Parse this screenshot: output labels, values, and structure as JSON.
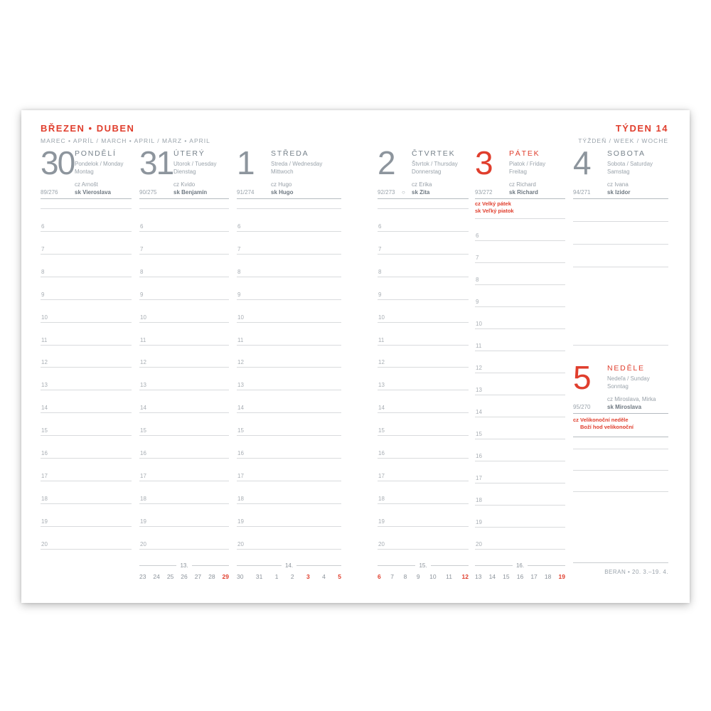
{
  "colors": {
    "accent": "#e03e2d"
  },
  "header": {
    "left_title": "BŘEZEN • DUBEN",
    "left_subtitle": "MAREC • APRÍL / MARCH • APRIL / MÄRZ • APRIL",
    "right_title": "TÝDEN 14",
    "right_subtitle": "TÝŽDEŇ / WEEK / WOCHE"
  },
  "hours": [
    "6",
    "7",
    "8",
    "9",
    "10",
    "11",
    "12",
    "13",
    "14",
    "15",
    "16",
    "17",
    "18",
    "19",
    "20"
  ],
  "days": [
    {
      "num": "30",
      "name": "PONDĚLÍ",
      "sub1": "Pondelok / Monday",
      "sub2": "Montag",
      "cz": "cz Arnošt",
      "sk": "sk Vieroslava",
      "doy": "89/276",
      "moon": ""
    },
    {
      "num": "31",
      "name": "ÚTERÝ",
      "sub1": "Utorok / Tuesday",
      "sub2": "Dienstag",
      "cz": "cz Kvido",
      "sk": "sk Benjamín",
      "doy": "90/275",
      "moon": ""
    },
    {
      "num": "1",
      "name": "STŘEDA",
      "sub1": "Streda / Wednesday",
      "sub2": "Mittwoch",
      "cz": "cz Hugo",
      "sk": "sk Hugo",
      "doy": "91/274",
      "moon": ""
    },
    {
      "num": "2",
      "name": "ČTVRTEK",
      "sub1": "Štvrtok / Thursday",
      "sub2": "Donnerstag",
      "cz": "cz Erika",
      "sk": "sk Zita",
      "doy": "92/273",
      "moon": "○"
    },
    {
      "num": "3",
      "name": "PÁTEK",
      "sub1": "Piatok / Friday",
      "sub2": "Freitag",
      "cz": "cz Richard",
      "sk": "sk Richard",
      "doy": "93/272",
      "moon": "",
      "holiday": [
        "cz Velký pátek",
        "sk Veľký piatok"
      ]
    },
    {
      "num": "4",
      "name": "SOBOTA",
      "sub1": "Sobota / Saturday",
      "sub2": "Samstag",
      "cz": "cz Ivana",
      "sk": "sk Izidor",
      "doy": "94/271",
      "moon": ""
    },
    {
      "num": "5",
      "name": "NEDĚLE",
      "sub1": "Nedeľa / Sunday",
      "sub2": "Sonntag",
      "cz": "cz Miroslava, Mirka",
      "sk": "sk Miroslava",
      "doy": "95/270",
      "moon": "",
      "holiday": [
        "cz Velikonoční neděle",
        "Boží hod velikonoční"
      ]
    }
  ],
  "minicals": [
    {
      "week": "13.",
      "days": [
        {
          "t": "23",
          "red": false
        },
        {
          "t": "24",
          "red": false
        },
        {
          "t": "25",
          "red": false
        },
        {
          "t": "26",
          "red": false
        },
        {
          "t": "27",
          "red": false
        },
        {
          "t": "28",
          "red": false
        },
        {
          "t": "29",
          "red": true
        }
      ]
    },
    {
      "week": "14.",
      "days": [
        {
          "t": "30",
          "red": false
        },
        {
          "t": "31",
          "red": false
        },
        {
          "t": "1",
          "red": false
        },
        {
          "t": "2",
          "red": false
        },
        {
          "t": "3",
          "red": true
        },
        {
          "t": "4",
          "red": false
        },
        {
          "t": "5",
          "red": true
        }
      ]
    },
    {
      "week": "15.",
      "days": [
        {
          "t": "6",
          "red": true
        },
        {
          "t": "7",
          "red": false
        },
        {
          "t": "8",
          "red": false
        },
        {
          "t": "9",
          "red": false
        },
        {
          "t": "10",
          "red": false
        },
        {
          "t": "11",
          "red": false
        },
        {
          "t": "12",
          "red": true
        }
      ]
    },
    {
      "week": "16.",
      "days": [
        {
          "t": "13",
          "red": false
        },
        {
          "t": "14",
          "red": false
        },
        {
          "t": "15",
          "red": false
        },
        {
          "t": "16",
          "red": false
        },
        {
          "t": "17",
          "red": false
        },
        {
          "t": "18",
          "red": false
        },
        {
          "t": "19",
          "red": true
        }
      ]
    }
  ],
  "zodiac": "BERAN • 20. 3.–19. 4."
}
